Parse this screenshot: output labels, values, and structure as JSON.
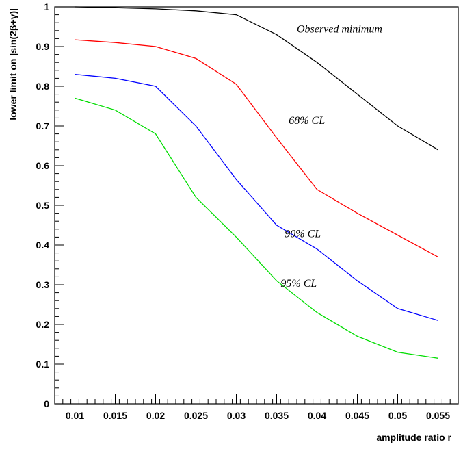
{
  "chart_data": {
    "type": "line",
    "xlabel": "amplitude ratio r",
    "ylabel": "lower limit on |sin(2β+γ)|",
    "xlim": [
      0.0075,
      0.0575
    ],
    "ylim": [
      0,
      1
    ],
    "x_ticks": [
      0.01,
      0.015,
      0.02,
      0.025,
      0.03,
      0.035,
      0.04,
      0.045,
      0.05,
      0.055
    ],
    "x_tick_labels": [
      "0.01",
      "0.015",
      "0.02",
      "0.025",
      "0.03",
      "0.035",
      "0.04",
      "0.045",
      "0.05",
      "0.055"
    ],
    "y_ticks": [
      0,
      0.1,
      0.2,
      0.3,
      0.4,
      0.5,
      0.6,
      0.7,
      0.8,
      0.9,
      1
    ],
    "y_tick_labels": [
      "0",
      "0.1",
      "0.2",
      "0.3",
      "0.4",
      "0.5",
      "0.6",
      "0.7",
      "0.8",
      "0.9",
      "1"
    ],
    "grid": false,
    "x": [
      0.01,
      0.015,
      0.02,
      0.025,
      0.03,
      0.035,
      0.04,
      0.045,
      0.05,
      0.055
    ],
    "series": [
      {
        "label": "Observed minimum",
        "color": "#000000",
        "values": [
          1.0,
          0.998,
          0.995,
          0.99,
          0.98,
          0.93,
          0.86,
          0.78,
          0.7,
          0.64
        ]
      },
      {
        "label": "68% CL",
        "color": "#ff0000",
        "values": [
          0.917,
          0.91,
          0.9,
          0.87,
          0.805,
          0.67,
          0.54,
          0.48,
          0.425,
          0.37
        ]
      },
      {
        "label": "90% CL",
        "color": "#0000ff",
        "values": [
          0.83,
          0.82,
          0.8,
          0.7,
          0.565,
          0.45,
          0.39,
          0.31,
          0.24,
          0.21
        ]
      },
      {
        "label": "95% CL",
        "color": "#00dd00",
        "values": [
          0.77,
          0.74,
          0.68,
          0.52,
          0.42,
          0.31,
          0.23,
          0.17,
          0.13,
          0.115
        ]
      }
    ],
    "annotations": [
      {
        "text": "Observed minimum",
        "x": 0.0375,
        "y": 0.935
      },
      {
        "text": "68% CL",
        "x": 0.0365,
        "y": 0.705
      },
      {
        "text": "90% CL",
        "x": 0.036,
        "y": 0.42
      },
      {
        "text": "95% CL",
        "x": 0.0355,
        "y": 0.295
      }
    ]
  }
}
